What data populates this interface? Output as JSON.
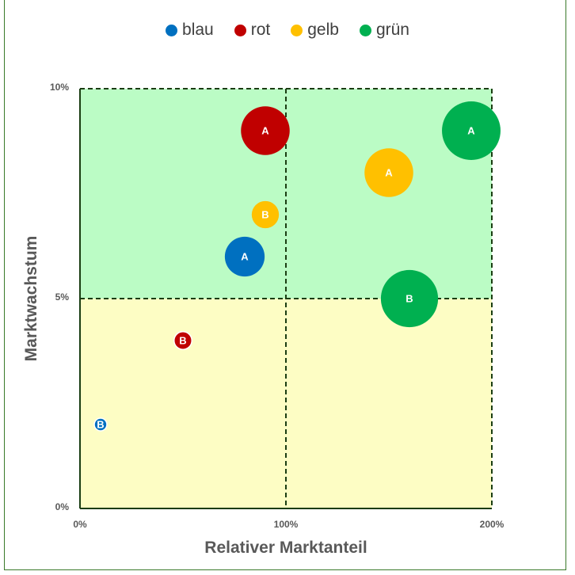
{
  "chart_data": {
    "type": "scatter",
    "title": "",
    "xlabel": "Relativer Marktanteil",
    "ylabel": "Marktwachstum",
    "xlim": [
      0,
      2
    ],
    "ylim": [
      0,
      0.1
    ],
    "x_ticks": [
      "0%",
      "100%",
      "200%"
    ],
    "y_ticks": [
      "0%",
      "5%",
      "10%"
    ],
    "grid": false,
    "legend_position": "top",
    "quadrant_split": {
      "x": 1,
      "y": 0.05
    },
    "quadrant_colors": {
      "top": "#bbfcc5",
      "bottom": "#fdfdc4"
    },
    "series": [
      {
        "name": "blau",
        "color": "#0070c0",
        "points": [
          {
            "label": "A",
            "x": 0.8,
            "y": 0.06,
            "size": 3
          },
          {
            "label": "B",
            "x": 0.1,
            "y": 0.02,
            "size": 0.3
          }
        ]
      },
      {
        "name": "rot",
        "color": "#c00000",
        "points": [
          {
            "label": "A",
            "x": 0.9,
            "y": 0.09,
            "size": 4.5
          },
          {
            "label": "B",
            "x": 0.5,
            "y": 0.04,
            "size": 0.6
          }
        ]
      },
      {
        "name": "gelb",
        "color": "#ffc000",
        "points": [
          {
            "label": "A",
            "x": 1.5,
            "y": 0.08,
            "size": 4.5
          },
          {
            "label": "B",
            "x": 0.9,
            "y": 0.07,
            "size": 1.4
          }
        ]
      },
      {
        "name": "grün",
        "color": "#00b050",
        "points": [
          {
            "label": "A",
            "x": 1.9,
            "y": 0.09,
            "size": 6.5
          },
          {
            "label": "B",
            "x": 1.6,
            "y": 0.05,
            "size": 6.2
          }
        ]
      }
    ]
  }
}
